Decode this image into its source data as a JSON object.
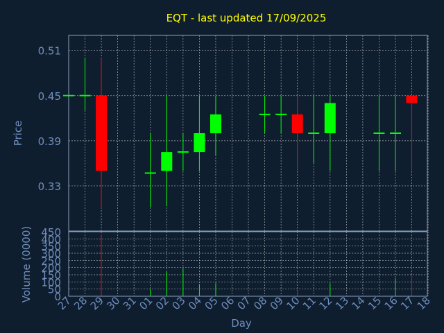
{
  "chart_data": {
    "type": "candlestick",
    "title": "EQT - last updated 17/09/2025",
    "ylabel": "Price",
    "volume_ylabel": "Volume (0000)",
    "xlabel": "Day",
    "ylim": [
      0.27,
      0.53
    ],
    "volume_ylim": [
      0,
      450
    ],
    "price_ticks": [
      "0.51",
      "0.45",
      "0.39",
      "0.33"
    ],
    "volume_ticks": [
      "450",
      "400",
      "350",
      "300",
      "250",
      "200",
      "150",
      "100",
      "50",
      "0"
    ],
    "x_labels": [
      "27",
      "28",
      "29",
      "30",
      "31",
      "01",
      "02",
      "03",
      "04",
      "05",
      "06",
      "07",
      "08",
      "09",
      "10",
      "11",
      "12",
      "13",
      "14",
      "15",
      "16",
      "17",
      "18"
    ],
    "grid": true,
    "colors": {
      "background": "#0f1e2e",
      "grid": "#d0d0d0",
      "title": "#ffff00",
      "axis_text": "#6f8fbf",
      "up": "#00ff00",
      "down": "#ff0000",
      "flat": "#00ff00"
    },
    "candles": [
      {
        "day": "27",
        "open": 0.45,
        "high": 0.45,
        "low": 0.45,
        "close": 0.45,
        "volume": 0
      },
      {
        "day": "28",
        "open": 0.45,
        "high": 0.5,
        "low": 0.43,
        "close": 0.45,
        "volume": 0
      },
      {
        "day": "29",
        "open": 0.45,
        "high": 0.5,
        "low": 0.3,
        "close": 0.35,
        "volume": 430
      },
      {
        "day": "01",
        "open": 0.347,
        "high": 0.4,
        "low": 0.302,
        "close": 0.347,
        "volume": 50
      },
      {
        "day": "02",
        "open": 0.35,
        "high": 0.45,
        "low": 0.303,
        "close": 0.375,
        "volume": 170
      },
      {
        "day": "03",
        "open": 0.375,
        "high": 0.4,
        "low": 0.35,
        "close": 0.375,
        "volume": 190
      },
      {
        "day": "04",
        "open": 0.375,
        "high": 0.45,
        "low": 0.35,
        "close": 0.4,
        "volume": 85
      },
      {
        "day": "05",
        "open": 0.4,
        "high": 0.45,
        "low": 0.37,
        "close": 0.425,
        "volume": 90
      },
      {
        "day": "08",
        "open": 0.425,
        "high": 0.45,
        "low": 0.4,
        "close": 0.425,
        "volume": 0
      },
      {
        "day": "09",
        "open": 0.425,
        "high": 0.45,
        "low": 0.4,
        "close": 0.425,
        "volume": 0
      },
      {
        "day": "10",
        "open": 0.425,
        "high": 0.45,
        "low": 0.35,
        "close": 0.4,
        "volume": 40
      },
      {
        "day": "11",
        "open": 0.4,
        "high": 0.45,
        "low": 0.36,
        "close": 0.4,
        "volume": 0
      },
      {
        "day": "12",
        "open": 0.4,
        "high": 0.45,
        "low": 0.35,
        "close": 0.44,
        "volume": 90
      },
      {
        "day": "15",
        "open": 0.4,
        "high": 0.45,
        "low": 0.35,
        "close": 0.4,
        "volume": 0
      },
      {
        "day": "16",
        "open": 0.4,
        "high": 0.45,
        "low": 0.35,
        "close": 0.4,
        "volume": 125
      },
      {
        "day": "17",
        "open": 0.45,
        "high": 0.45,
        "low": 0.35,
        "close": 0.44,
        "volume": 145
      }
    ]
  }
}
